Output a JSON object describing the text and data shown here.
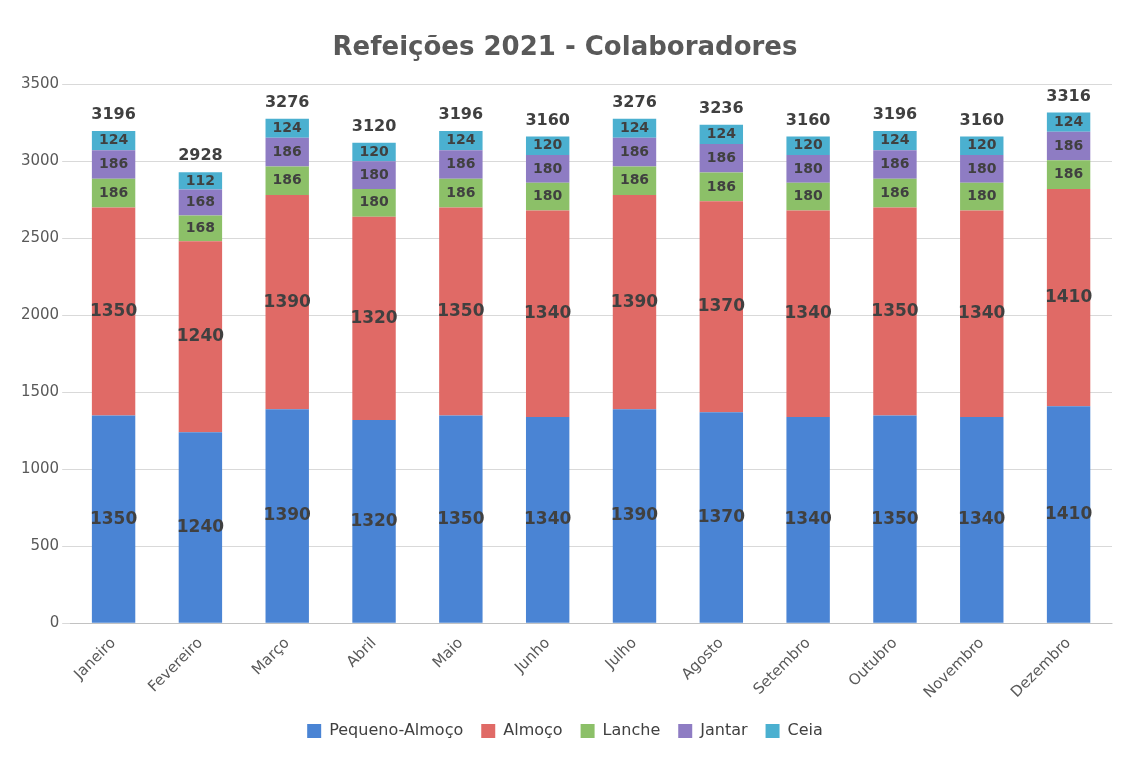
{
  "chart_data": {
    "type": "bar",
    "title": "Refeições 2021 - Colaboradores",
    "categories": [
      "Janeiro",
      "Fevereiro",
      "Março",
      "Abril",
      "Maio",
      "Junho",
      "Julho",
      "Agosto",
      "Setembro",
      "Outubro",
      "Novembro",
      "Dezembro"
    ],
    "series": [
      {
        "name": "Pequeno-Almoço",
        "color": "#4a84d4",
        "values": [
          1350,
          1240,
          1390,
          1320,
          1350,
          1340,
          1390,
          1370,
          1340,
          1350,
          1340,
          1410
        ]
      },
      {
        "name": "Almoço",
        "color": "#e06a66",
        "values": [
          1350,
          1240,
          1390,
          1320,
          1350,
          1340,
          1390,
          1370,
          1340,
          1350,
          1340,
          1410
        ]
      },
      {
        "name": "Lanche",
        "color": "#8cc068",
        "values": [
          186,
          168,
          186,
          180,
          186,
          180,
          186,
          186,
          180,
          186,
          180,
          186
        ]
      },
      {
        "name": "Jantar",
        "color": "#8e7cc3",
        "values": [
          186,
          168,
          186,
          180,
          186,
          180,
          186,
          186,
          180,
          186,
          180,
          186
        ]
      },
      {
        "name": "Ceia",
        "color": "#4bb0d0",
        "values": [
          124,
          112,
          124,
          120,
          124,
          120,
          124,
          124,
          120,
          124,
          120,
          124
        ]
      }
    ],
    "stacked": true,
    "data_labels": true,
    "totals": [
      "3196",
      "2928",
      "3276",
      "3120",
      "3196",
      "3160",
      "3276",
      "3236",
      "3160",
      "3196",
      "3160",
      "3316"
    ],
    "ylim": [
      0,
      3500
    ],
    "yticks": [
      0,
      500,
      1000,
      1500,
      2000,
      2500,
      3000,
      3500
    ],
    "grid": "y",
    "legend": "bottom"
  }
}
